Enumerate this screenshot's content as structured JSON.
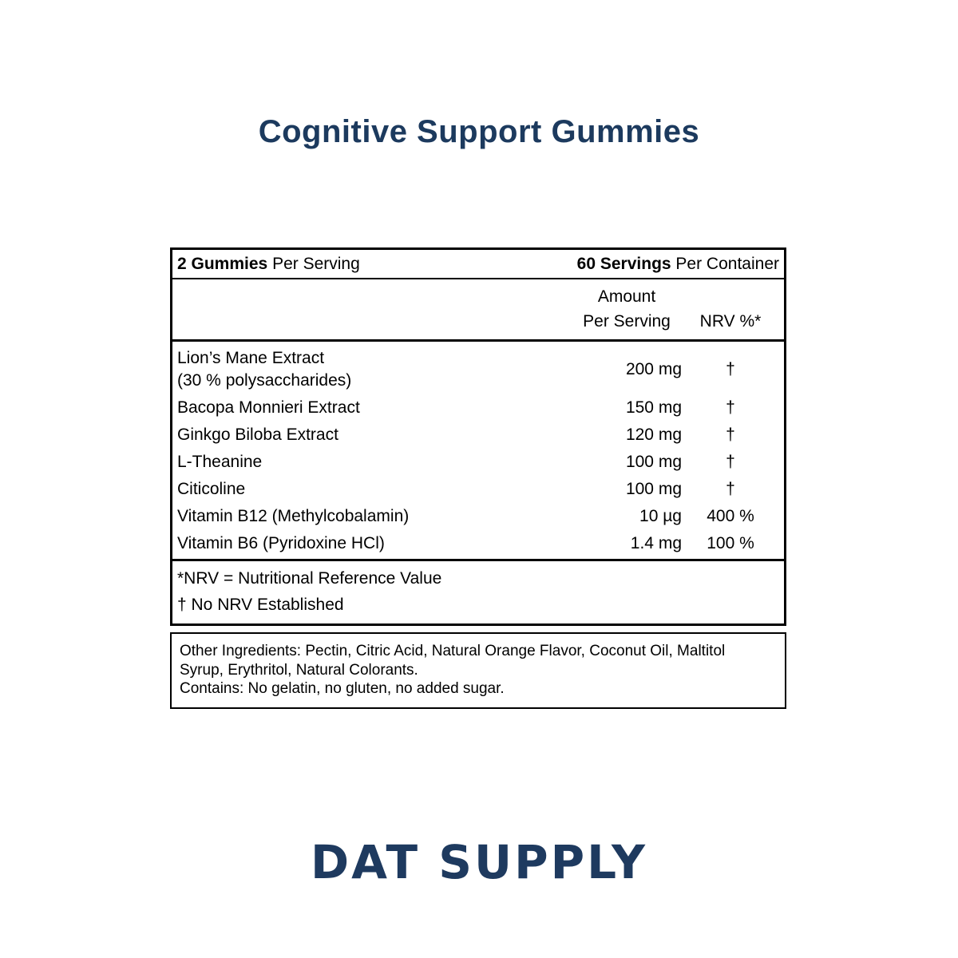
{
  "page": {
    "title": "Cognitive Support Gummies",
    "brand": "DAT SUPPLY"
  },
  "colors": {
    "brand_navy": "#1e3a5f",
    "text_black": "#000000"
  },
  "supplement_table": {
    "serving_row": {
      "left_bold": "2 Gummies",
      "left_rest": "Per Serving",
      "right_bold": "60 Servings",
      "right_rest": "Per Container"
    },
    "header": {
      "amount_line1": "Amount",
      "amount_line2": "Per Serving",
      "nrv": "NRV %*"
    },
    "rows": [
      {
        "name": "Lion’s Mane Extract",
        "name2": "(30 % polysaccharides)",
        "amount": "200 mg",
        "nrv": "†"
      },
      {
        "name": "Bacopa Monnieri Extract",
        "amount": "150 mg",
        "nrv": "†"
      },
      {
        "name": "Ginkgo Biloba Extract",
        "amount": "120 mg",
        "nrv": "†"
      },
      {
        "name": "L-Theanine",
        "amount": "100 mg",
        "nrv": "†"
      },
      {
        "name": "Citicoline",
        "amount": "100 mg",
        "nrv": "†"
      },
      {
        "name": "Vitamin B12 (Methylcobalamin)",
        "amount": "10 µg",
        "nrv": "400 %"
      },
      {
        "name": "Vitamin B6 (Pyridoxine HCl)",
        "amount": "1.4 mg",
        "nrv": "100 %"
      }
    ],
    "footnotes": [
      "*NRV = Nutritional Reference Value",
      "† No NRV Established"
    ]
  },
  "other_ingredients": {
    "line1": "Other Ingredients: Pectin, Citric Acid, Natural Orange Flavor, Coconut Oil, Maltitol Syrup, Erythritol, Natural Colorants.",
    "line2": "Contains: No gelatin, no gluten, no added sugar."
  }
}
